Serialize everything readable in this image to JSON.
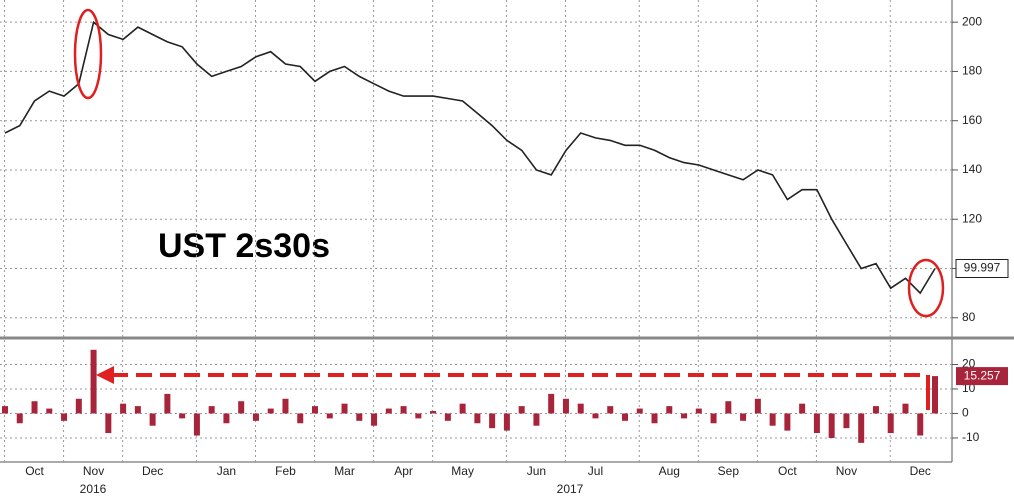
{
  "chart_data": [
    {
      "type": "line",
      "title": "UST 2s30s",
      "categories": [
        null,
        null,
        "Oct",
        null,
        null,
        null,
        "Nov",
        null,
        null,
        null,
        "Dec",
        null,
        null,
        null,
        null,
        "Jan",
        null,
        null,
        null,
        "Feb",
        null,
        null,
        null,
        "Mar",
        null,
        null,
        null,
        "Apr",
        null,
        null,
        null,
        "May",
        null,
        null,
        null,
        null,
        "Jun",
        null,
        null,
        null,
        "Jul",
        null,
        null,
        null,
        null,
        "Aug",
        null,
        null,
        null,
        "Sep",
        null,
        null,
        null,
        "Oct",
        null,
        null,
        null,
        "Nov",
        null,
        null,
        null,
        null,
        "Dec",
        null
      ],
      "years": [
        "2016",
        "2017"
      ],
      "series": [
        {
          "color": "#222222",
          "values": [
            155,
            158,
            168,
            172,
            170,
            175,
            200,
            195,
            193,
            198,
            195,
            192,
            190,
            183,
            178,
            180,
            182,
            186,
            188,
            183,
            182,
            176,
            180,
            182,
            178,
            175,
            172,
            170,
            170,
            170,
            169,
            168,
            163,
            158,
            152,
            148,
            140,
            138,
            148,
            155,
            153,
            152,
            150,
            150,
            148,
            145,
            143,
            142,
            140,
            138,
            136,
            140,
            138,
            128,
            132,
            132,
            120,
            110,
            100,
            102,
            92,
            96,
            90,
            99.997
          ]
        }
      ],
      "ylim": [
        73,
        209
      ],
      "yticks": [
        80,
        100,
        120,
        140,
        160,
        180,
        200
      ],
      "grid": true
    },
    {
      "type": "bar",
      "series": [
        {
          "color": "#a8243a",
          "values": [
            3,
            -4,
            5,
            2,
            -3,
            6,
            26,
            -8,
            4,
            3,
            -5,
            8,
            -2,
            -9,
            3,
            -4,
            5,
            -3,
            2,
            6,
            -4,
            3,
            -2,
            4,
            -3,
            -5,
            2,
            3,
            -2,
            1,
            -3,
            4,
            -4,
            -6,
            -7,
            3,
            -5,
            8,
            6,
            4,
            -2,
            3,
            -3,
            2,
            -4,
            3,
            -2,
            2,
            -4,
            5,
            -3,
            6,
            -5,
            -7,
            4,
            -8,
            -10,
            -6,
            -12,
            3,
            -8,
            4,
            -9,
            15.257
          ]
        }
      ],
      "ylim": [
        -19,
        30
      ],
      "yticks": [
        -10,
        0,
        10,
        20
      ],
      "grid": true
    }
  ]
}
